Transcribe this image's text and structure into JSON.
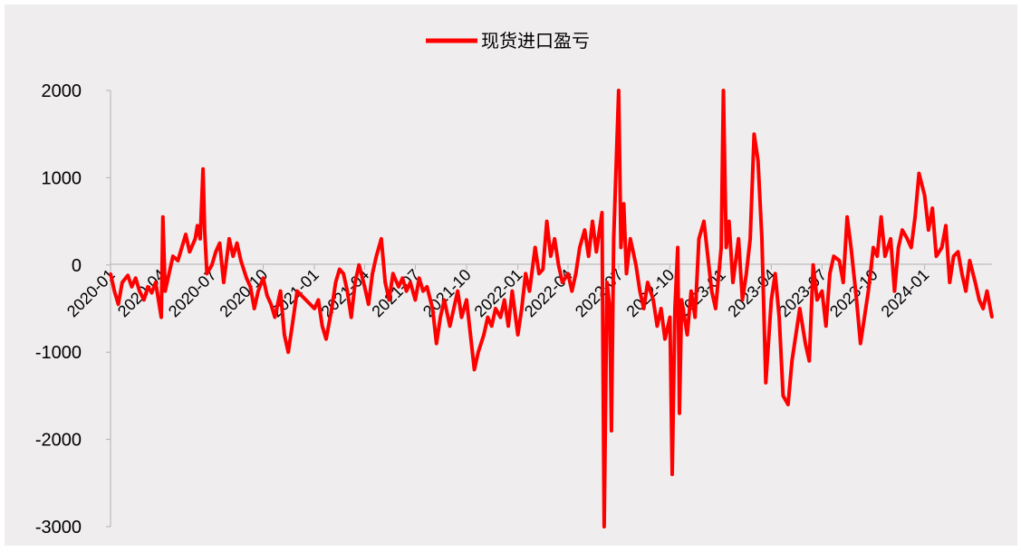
{
  "chart_data": {
    "type": "line",
    "title": "",
    "xlabel": "",
    "ylabel": "",
    "ylim": [
      -3000,
      2000
    ],
    "yticks": [
      2000,
      1000,
      0,
      -1000,
      -2000,
      -3000
    ],
    "xticks": [
      "2020-01",
      "2020-04",
      "2020-07",
      "2020-10",
      "2021-01",
      "2021-04",
      "2021-07",
      "2021-10",
      "2022-01",
      "2022-04",
      "2022-07",
      "2022-10",
      "2023-01",
      "2023-04",
      "2023-07",
      "2023-10",
      "2024-01"
    ],
    "x_range": [
      "2020-01",
      "2024-05"
    ],
    "legend": {
      "position": "top-center"
    },
    "grid": false,
    "series": [
      {
        "name": "现货进口盈亏",
        "color": "#ff0000",
        "points": [
          [
            "2020-01",
            -100
          ],
          [
            "2020-01-08",
            -300
          ],
          [
            "2020-01-15",
            -450
          ],
          [
            "2020-01-22",
            -200
          ],
          [
            "2020-02",
            -120
          ],
          [
            "2020-02-08",
            -250
          ],
          [
            "2020-02-15",
            -150
          ],
          [
            "2020-02-22",
            -300
          ],
          [
            "2020-03",
            -400
          ],
          [
            "2020-03-08",
            -250
          ],
          [
            "2020-03-15",
            -320
          ],
          [
            "2020-03-22",
            -200
          ],
          [
            "2020-04",
            -600
          ],
          [
            "2020-04-04",
            550
          ],
          [
            "2020-04-08",
            -300
          ],
          [
            "2020-04-15",
            -100
          ],
          [
            "2020-04-22",
            100
          ],
          [
            "2020-05",
            50
          ],
          [
            "2020-05-08",
            200
          ],
          [
            "2020-05-15",
            350
          ],
          [
            "2020-05-22",
            150
          ],
          [
            "2020-06",
            300
          ],
          [
            "2020-06-05",
            450
          ],
          [
            "2020-06-10",
            300
          ],
          [
            "2020-06-15",
            1100
          ],
          [
            "2020-06-18",
            400
          ],
          [
            "2020-06-22",
            -100
          ],
          [
            "2020-07",
            0
          ],
          [
            "2020-07-08",
            150
          ],
          [
            "2020-07-15",
            250
          ],
          [
            "2020-07-22",
            -200
          ],
          [
            "2020-08",
            300
          ],
          [
            "2020-08-08",
            100
          ],
          [
            "2020-08-15",
            250
          ],
          [
            "2020-08-22",
            50
          ],
          [
            "2020-09",
            -150
          ],
          [
            "2020-09-08",
            -250
          ],
          [
            "2020-09-15",
            -500
          ],
          [
            "2020-09-22",
            -300
          ],
          [
            "2020-10",
            -150
          ],
          [
            "2020-10-08",
            -350
          ],
          [
            "2020-10-15",
            -450
          ],
          [
            "2020-10-22",
            -600
          ],
          [
            "2020-11",
            -300
          ],
          [
            "2020-11-08",
            -800
          ],
          [
            "2020-11-15",
            -1000
          ],
          [
            "2020-11-22",
            -700
          ],
          [
            "2020-12",
            -300
          ],
          [
            "2021-01",
            -500
          ],
          [
            "2021-01-08",
            -400
          ],
          [
            "2021-01-15",
            -700
          ],
          [
            "2021-01-22",
            -850
          ],
          [
            "2021-02",
            -500
          ],
          [
            "2021-02-08",
            -200
          ],
          [
            "2021-02-15",
            -50
          ],
          [
            "2021-02-22",
            -100
          ],
          [
            "2021-03",
            -300
          ],
          [
            "2021-03-08",
            -600
          ],
          [
            "2021-03-15",
            -200
          ],
          [
            "2021-03-22",
            0
          ],
          [
            "2021-04",
            -250
          ],
          [
            "2021-04-08",
            -450
          ],
          [
            "2021-04-15",
            -100
          ],
          [
            "2021-04-22",
            100
          ],
          [
            "2021-05",
            300
          ],
          [
            "2021-05-08",
            -200
          ],
          [
            "2021-05-15",
            -400
          ],
          [
            "2021-05-22",
            -100
          ],
          [
            "2021-06",
            -250
          ],
          [
            "2021-06-08",
            -150
          ],
          [
            "2021-06-15",
            -300
          ],
          [
            "2021-06-22",
            -200
          ],
          [
            "2021-07",
            -400
          ],
          [
            "2021-07-08",
            -150
          ],
          [
            "2021-07-15",
            -300
          ],
          [
            "2021-07-22",
            -250
          ],
          [
            "2021-08",
            -500
          ],
          [
            "2021-08-08",
            -900
          ],
          [
            "2021-08-15",
            -600
          ],
          [
            "2021-08-22",
            -400
          ],
          [
            "2021-09",
            -700
          ],
          [
            "2021-09-08",
            -500
          ],
          [
            "2021-09-15",
            -300
          ],
          [
            "2021-09-22",
            -600
          ],
          [
            "2021-10",
            -400
          ],
          [
            "2021-10-08",
            -800
          ],
          [
            "2021-10-15",
            -1200
          ],
          [
            "2021-10-22",
            -1000
          ],
          [
            "2021-11",
            -800
          ],
          [
            "2021-11-08",
            -600
          ],
          [
            "2021-11-15",
            -700
          ],
          [
            "2021-11-22",
            -500
          ],
          [
            "2021-12",
            -600
          ],
          [
            "2021-12-08",
            -400
          ],
          [
            "2021-12-15",
            -700
          ],
          [
            "2021-12-22",
            -300
          ],
          [
            "2022-01",
            -800
          ],
          [
            "2022-01-08",
            -500
          ],
          [
            "2022-01-15",
            -100
          ],
          [
            "2022-01-22",
            -300
          ],
          [
            "2022-02",
            200
          ],
          [
            "2022-02-08",
            -100
          ],
          [
            "2022-02-15",
            -50
          ],
          [
            "2022-02-22",
            500
          ],
          [
            "2022-03",
            100
          ],
          [
            "2022-03-08",
            300
          ],
          [
            "2022-03-15",
            0
          ],
          [
            "2022-03-22",
            -200
          ],
          [
            "2022-04",
            -100
          ],
          [
            "2022-04-08",
            -300
          ],
          [
            "2022-04-15",
            -100
          ],
          [
            "2022-04-22",
            200
          ],
          [
            "2022-05",
            400
          ],
          [
            "2022-05-08",
            100
          ],
          [
            "2022-05-15",
            500
          ],
          [
            "2022-05-22",
            150
          ],
          [
            "2022-06",
            600
          ],
          [
            "2022-06-05",
            -3000
          ],
          [
            "2022-06-10",
            -200
          ],
          [
            "2022-06-15",
            -500
          ],
          [
            "2022-06-18",
            -1900
          ],
          [
            "2022-06-22",
            300
          ],
          [
            "2022-07",
            2000
          ],
          [
            "2022-07-05",
            200
          ],
          [
            "2022-07-10",
            700
          ],
          [
            "2022-07-15",
            -100
          ],
          [
            "2022-07-22",
            300
          ],
          [
            "2022-08",
            0
          ],
          [
            "2022-08-08",
            -300
          ],
          [
            "2022-08-15",
            -500
          ],
          [
            "2022-08-22",
            -200
          ],
          [
            "2022-09",
            -400
          ],
          [
            "2022-09-08",
            -700
          ],
          [
            "2022-09-15",
            -500
          ],
          [
            "2022-09-22",
            -850
          ],
          [
            "2022-10",
            -600
          ],
          [
            "2022-10-05",
            -2400
          ],
          [
            "2022-10-10",
            -500
          ],
          [
            "2022-10-15",
            200
          ],
          [
            "2022-10-18",
            -1700
          ],
          [
            "2022-10-22",
            -400
          ],
          [
            "2022-11",
            -800
          ],
          [
            "2022-11-08",
            -300
          ],
          [
            "2022-11-15",
            -600
          ],
          [
            "2022-11-22",
            300
          ],
          [
            "2022-12",
            500
          ],
          [
            "2022-12-08",
            100
          ],
          [
            "2022-12-15",
            -300
          ],
          [
            "2022-12-22",
            -500
          ],
          [
            "2023-01",
            200
          ],
          [
            "2023-01-05",
            2000
          ],
          [
            "2023-01-10",
            200
          ],
          [
            "2023-01-15",
            500
          ],
          [
            "2023-01-22",
            -200
          ],
          [
            "2023-02",
            300
          ],
          [
            "2023-02-08",
            -400
          ],
          [
            "2023-02-15",
            -100
          ],
          [
            "2023-02-22",
            300
          ],
          [
            "2023-03",
            1500
          ],
          [
            "2023-03-08",
            1200
          ],
          [
            "2023-03-15",
            300
          ],
          [
            "2023-03-22",
            -1350
          ],
          [
            "2023-04",
            -400
          ],
          [
            "2023-04-08",
            -100
          ],
          [
            "2023-04-15",
            -600
          ],
          [
            "2023-04-22",
            -1500
          ],
          [
            "2023-05",
            -1600
          ],
          [
            "2023-05-08",
            -1100
          ],
          [
            "2023-05-15",
            -800
          ],
          [
            "2023-05-22",
            -500
          ],
          [
            "2023-06",
            -900
          ],
          [
            "2023-06-08",
            -1100
          ],
          [
            "2023-06-15",
            0
          ],
          [
            "2023-06-22",
            -400
          ],
          [
            "2023-07",
            -300
          ],
          [
            "2023-07-08",
            -700
          ],
          [
            "2023-07-15",
            -100
          ],
          [
            "2023-07-22",
            100
          ],
          [
            "2023-08",
            50
          ],
          [
            "2023-08-08",
            -200
          ],
          [
            "2023-08-15",
            550
          ],
          [
            "2023-08-22",
            200
          ],
          [
            "2023-09",
            -400
          ],
          [
            "2023-09-08",
            -900
          ],
          [
            "2023-09-15",
            -600
          ],
          [
            "2023-09-22",
            -300
          ],
          [
            "2023-10",
            200
          ],
          [
            "2023-10-08",
            100
          ],
          [
            "2023-10-15",
            550
          ],
          [
            "2023-10-22",
            100
          ],
          [
            "2023-11",
            300
          ],
          [
            "2023-11-08",
            -300
          ],
          [
            "2023-11-15",
            200
          ],
          [
            "2023-11-22",
            400
          ],
          [
            "2023-12",
            300
          ],
          [
            "2023-12-08",
            200
          ],
          [
            "2023-12-15",
            550
          ],
          [
            "2023-12-22",
            1050
          ],
          [
            "2024-01",
            800
          ],
          [
            "2024-01-08",
            400
          ],
          [
            "2024-01-15",
            650
          ],
          [
            "2024-01-22",
            100
          ],
          [
            "2024-02",
            200
          ],
          [
            "2024-02-08",
            450
          ],
          [
            "2024-02-15",
            -200
          ],
          [
            "2024-02-22",
            100
          ],
          [
            "2024-03",
            150
          ],
          [
            "2024-03-08",
            -100
          ],
          [
            "2024-03-15",
            -300
          ],
          [
            "2024-03-22",
            50
          ],
          [
            "2024-04",
            -200
          ],
          [
            "2024-04-08",
            -400
          ],
          [
            "2024-04-15",
            -500
          ],
          [
            "2024-04-22",
            -300
          ],
          [
            "2024-05",
            -600
          ]
        ]
      }
    ]
  }
}
